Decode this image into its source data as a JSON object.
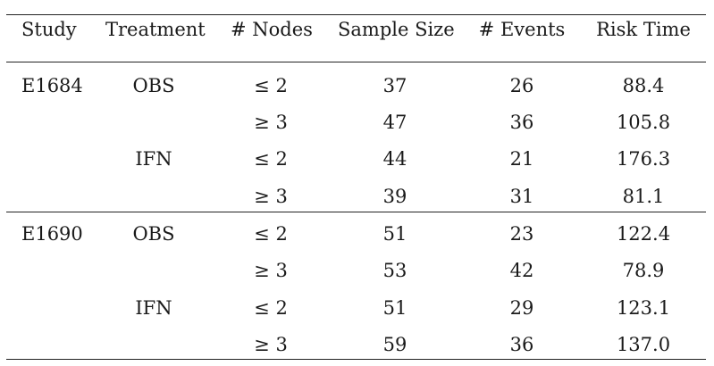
{
  "table": {
    "headers": [
      "Study",
      "Treatment",
      "# Nodes",
      "Sample Size",
      "# Events",
      "Risk Time"
    ],
    "rows": [
      [
        "E1684",
        "OBS",
        "≤ 2",
        "37",
        "26",
        "88.4"
      ],
      [
        "",
        "",
        "≥ 3",
        "47",
        "36",
        "105.8"
      ],
      [
        "",
        "IFN",
        "≤ 2",
        "44",
        "21",
        "176.3"
      ],
      [
        "",
        "",
        "≥ 3",
        "39",
        "31",
        "81.1"
      ],
      [
        "E1690",
        "OBS",
        "≤ 2",
        "51",
        "23",
        "122.4"
      ],
      [
        "",
        "",
        "≥ 3",
        "53",
        "42",
        "78.9"
      ],
      [
        "",
        "IFN",
        "≤ 2",
        "51",
        "29",
        "123.1"
      ],
      [
        "",
        "",
        "≥ 3",
        "59",
        "36",
        "137.0"
      ]
    ]
  }
}
